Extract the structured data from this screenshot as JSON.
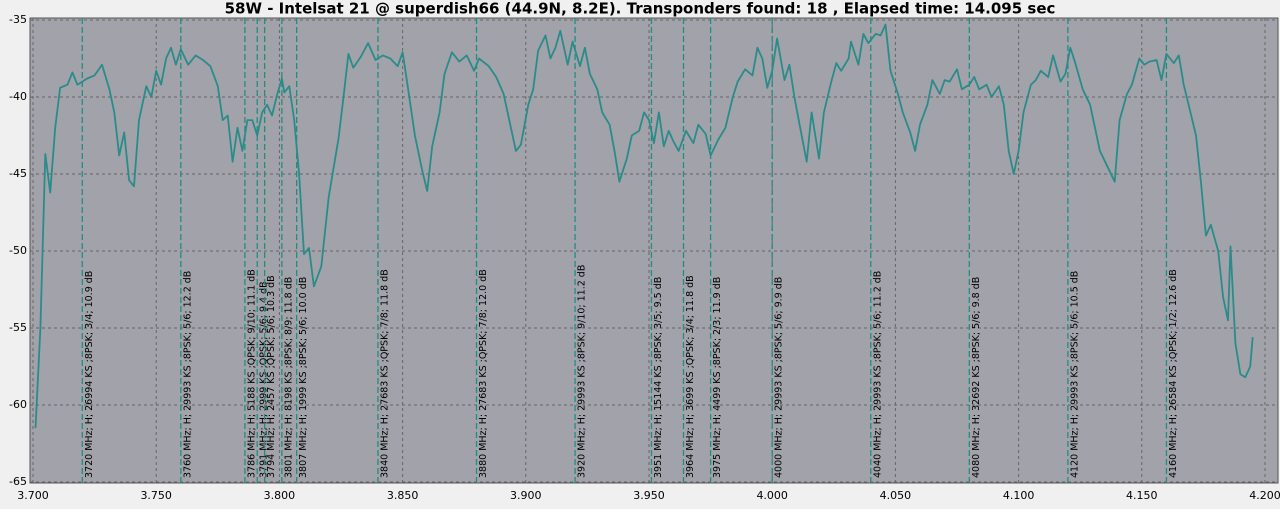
{
  "chart_data": {
    "type": "line",
    "title": "58W - Intelsat 21 @ superdish66 (44.9N, 8.2E). Transponders found: 18 , Elapsed time: 14.095 sec",
    "x": [
      3.701,
      3.703,
      3.705,
      3.707,
      3.709,
      3.711,
      3.714,
      3.716,
      3.718,
      3.722,
      3.725,
      3.728,
      3.731,
      3.733,
      3.735,
      3.737,
      3.739,
      3.741,
      3.743,
      3.746,
      3.748,
      3.75,
      3.752,
      3.754,
      3.756,
      3.758,
      3.76,
      3.763,
      3.766,
      3.769,
      3.772,
      3.775,
      3.777,
      3.779,
      3.781,
      3.783,
      3.785,
      3.787,
      3.789,
      3.791,
      3.793,
      3.795,
      3.797,
      3.799,
      3.801,
      3.802,
      3.804,
      3.806,
      3.808,
      3.81,
      3.812,
      3.814,
      3.817,
      3.82,
      3.824,
      3.826,
      3.828,
      3.83,
      3.833,
      3.836,
      3.839,
      3.842,
      3.845,
      3.848,
      3.85,
      3.852,
      3.855,
      3.858,
      3.86,
      3.862,
      3.865,
      3.867,
      3.87,
      3.873,
      3.876,
      3.879,
      3.881,
      3.885,
      3.888,
      3.891,
      3.893,
      3.896,
      3.898,
      3.901,
      3.903,
      3.905,
      3.908,
      3.91,
      3.912,
      3.914,
      3.917,
      3.919,
      3.922,
      3.924,
      3.926,
      3.929,
      3.931,
      3.934,
      3.936,
      3.938,
      3.941,
      3.943,
      3.946,
      3.948,
      3.95,
      3.952,
      3.954,
      3.956,
      3.958,
      3.96,
      3.962,
      3.965,
      3.968,
      3.97,
      3.973,
      3.975,
      3.978,
      3.981,
      3.984,
      3.986,
      3.989,
      3.992,
      3.994,
      3.996,
      3.998,
      4.0,
      4.002,
      4.005,
      4.007,
      4.009,
      4.011,
      4.014,
      4.016,
      4.019,
      4.021,
      4.024,
      4.026,
      4.028,
      4.031,
      4.032,
      4.035,
      4.037,
      4.039,
      4.042,
      4.044,
      4.046,
      4.048,
      4.051,
      4.053,
      4.056,
      4.058,
      4.06,
      4.063,
      4.065,
      4.068,
      4.07,
      4.072,
      4.075,
      4.077,
      4.08,
      4.082,
      4.084,
      4.087,
      4.089,
      4.092,
      4.094,
      4.096,
      4.098,
      4.1,
      4.102,
      4.105,
      4.107,
      4.109,
      4.112,
      4.114,
      4.117,
      4.119,
      4.121,
      4.123,
      4.126,
      4.129,
      4.131,
      4.133,
      4.136,
      4.139,
      4.141,
      4.144,
      4.146,
      4.149,
      4.151,
      4.153,
      4.156,
      4.158,
      4.16,
      4.163,
      4.165,
      4.167,
      4.169,
      4.172,
      4.174,
      4.176,
      4.178,
      4.181,
      4.183,
      4.185,
      4.186,
      4.188,
      4.19,
      4.192,
      4.194,
      4.195
    ],
    "series": [
      {
        "color": "#2a8c8a",
        "values": [
          -61.5,
          -55,
          -43.7,
          -46.2,
          -42,
          -39.4,
          -39.2,
          -38.4,
          -39.2,
          -38.8,
          -38.6,
          -37.9,
          -39.5,
          -41,
          -43.8,
          -42.3,
          -45.4,
          -45.8,
          -41.5,
          -39.3,
          -40,
          -38.3,
          -39.2,
          -37.5,
          -36.8,
          -37.9,
          -36.9,
          -37.9,
          -37.3,
          -37.6,
          -38,
          -39.3,
          -41.5,
          -41.2,
          -44.2,
          -42,
          -43.5,
          -41.5,
          -41.5,
          -42.5,
          -41,
          -40.5,
          -41.2,
          -39.9,
          -38.8,
          -39.7,
          -39.3,
          -41.5,
          -45,
          -50.2,
          -49.8,
          -52.3,
          -51,
          -46.5,
          -42.7,
          -40,
          -37.2,
          -38.1,
          -37.4,
          -36.5,
          -37.6,
          -37.3,
          -37.5,
          -38,
          -37.1,
          -39.2,
          -42.5,
          -44.8,
          -46.1,
          -43.2,
          -41,
          -38.5,
          -37.1,
          -37.7,
          -37.3,
          -38.3,
          -37.5,
          -38,
          -38.7,
          -39.8,
          -41.3,
          -43.5,
          -43.1,
          -40.5,
          -39.5,
          -37,
          -36,
          -37.5,
          -36.8,
          -35.7,
          -37.9,
          -36.4,
          -38,
          -36.8,
          -38.5,
          -39.5,
          -41,
          -41.8,
          -43.5,
          -45.5,
          -44,
          -42.5,
          -42.2,
          -41,
          -41.5,
          -43,
          -41,
          -43.2,
          -42.2,
          -42.9,
          -43.5,
          -42.2,
          -43,
          -41.8,
          -42.4,
          -43.8,
          -42.8,
          -42,
          -40,
          -39,
          -38.2,
          -38.6,
          -36.8,
          -37.5,
          -39.4,
          -38.3,
          -36.2,
          -38.9,
          -37.9,
          -40,
          -41.7,
          -44.2,
          -41,
          -44,
          -41,
          -39,
          -37.8,
          -38.3,
          -37.5,
          -36.4,
          -37.9,
          -35.9,
          -36.5,
          -35.9,
          -36,
          -35.3,
          -38.3,
          -39.8,
          -41,
          -42.3,
          -43.5,
          -41.8,
          -40.5,
          -38.9,
          -39.8,
          -38.9,
          -39,
          -38.2,
          -39.5,
          -39.2,
          -38.7,
          -39.5,
          -39.2,
          -40,
          -39.3,
          -40.5,
          -43.5,
          -45,
          -43.5,
          -41,
          -39.2,
          -38.9,
          -38.3,
          -38.7,
          -37.3,
          -39,
          -38.5,
          -36.8,
          -37.8,
          -39.5,
          -40.5,
          -42,
          -43.5,
          -44.5,
          -45.5,
          -41.5,
          -39.8,
          -39.2,
          -37.5,
          -37.9,
          -37.7,
          -37.6,
          -38.9,
          -37.2,
          -37.8,
          -37.3,
          -39.2,
          -40.5,
          -42.5,
          -45.5,
          -49,
          -48.3,
          -50,
          -53,
          -54.5,
          -49.7,
          -56,
          -58,
          -58.2,
          -57.5,
          -55.6
        ]
      }
    ],
    "xlim": [
      3.7,
      4.2
    ],
    "ylim": [
      -65,
      -35
    ],
    "xticks": [
      {
        "value": 3.7,
        "label": "3.700"
      },
      {
        "value": 3.75,
        "label": "3.750"
      },
      {
        "value": 3.8,
        "label": "3.800"
      },
      {
        "value": 3.85,
        "label": "3.850"
      },
      {
        "value": 3.9,
        "label": "3.900"
      },
      {
        "value": 3.95,
        "label": "3.950"
      },
      {
        "value": 4.0,
        "label": "4.000"
      },
      {
        "value": 4.05,
        "label": "4.050"
      },
      {
        "value": 4.1,
        "label": "4.100"
      },
      {
        "value": 4.15,
        "label": "4.150"
      },
      {
        "value": 4.2,
        "label": "4.200"
      }
    ],
    "yticks": [
      -65,
      -60,
      -55,
      -50,
      -45,
      -40,
      -35
    ],
    "grid": true,
    "marker_color": "#1f8f80",
    "annotations": [
      {
        "x": 3.72,
        "label": "3720 MHz; H; 26994 KS ;8PSK; 3/4; 10.9 dB"
      },
      {
        "x": 3.76,
        "label": "3760 MHz; H; 29993 KS ;8PSK; 5/6; 12.2 dB"
      },
      {
        "x": 3.786,
        "label": "3786 MHz; H; 5188 KS ;QPSK; 9/10; 11.1 dB"
      },
      {
        "x": 3.791,
        "label": "3791 MHz; H; 2999 KS ;QPSK; 5/6; 9.4 dB"
      },
      {
        "x": 3.794,
        "label": "3794 MHz; H; 2457 KS ;QPSK; 5/6; 10.3 dB"
      },
      {
        "x": 3.801,
        "label": "3801 MHz; H; 8198 KS ;8PSK; 8/9; 11.8 dB"
      },
      {
        "x": 3.807,
        "label": "3807 MHz; H; 1999 KS ;8PSK; 5/6; 10.0 dB"
      },
      {
        "x": 3.84,
        "label": "3840 MHz; H; 27683 KS ;QPSK; 7/8; 11.8 dB"
      },
      {
        "x": 3.88,
        "label": "3880 MHz; H; 27683 KS ;QPSK; 7/8; 12.0 dB"
      },
      {
        "x": 3.92,
        "label": "3920 MHz; H; 29993 KS ;8PSK; 9/10; 11.2 dB"
      },
      {
        "x": 3.951,
        "label": "3951 MHz; H; 15144 KS ;8PSK; 3/5; 9.5 dB"
      },
      {
        "x": 3.964,
        "label": "3964 MHz; H; 3699 KS ;QPSK; 3/4; 11.8 dB"
      },
      {
        "x": 3.975,
        "label": "3975 MHz; H; 4499 KS ;8PSK; 2/3; 11.9 dB"
      },
      {
        "x": 4.0,
        "label": "4000 MHz; H; 29993 KS ;8PSK; 5/6; 9.9 dB"
      },
      {
        "x": 4.04,
        "label": "4040 MHz; H; 29993 KS ;8PSK; 5/6; 11.2 dB"
      },
      {
        "x": 4.08,
        "label": "4080 MHz; H; 32692 KS ;8PSK; 5/6; 9.8 dB"
      },
      {
        "x": 4.12,
        "label": "4120 MHz; H; 29993 KS ;8PSK; 5/6; 10.5 dB"
      },
      {
        "x": 4.16,
        "label": "4160 MHz; H; 26584 KS ;QPSK; 1/2; 12.6 dB"
      }
    ]
  }
}
